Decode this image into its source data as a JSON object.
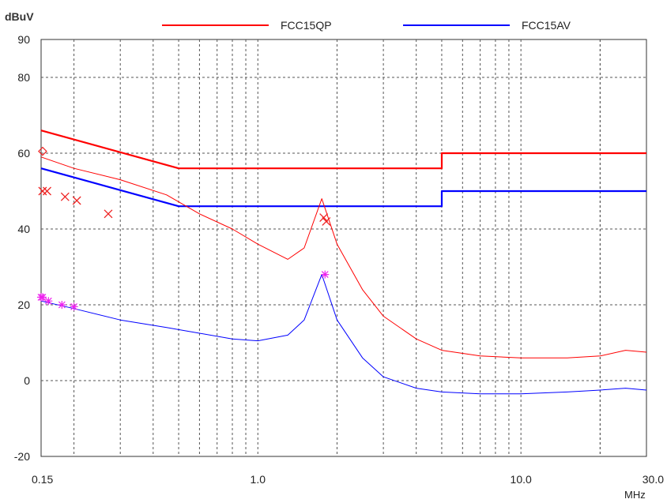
{
  "chart_data": {
    "type": "line",
    "ylabel": "dBuV",
    "xunit": "MHz",
    "x_scale": "log",
    "xlim": [
      0.15,
      30.0
    ],
    "ylim": [
      -20,
      90
    ],
    "grid": true,
    "legend_position": "top",
    "x_tick_labels": [
      {
        "value": 0.15,
        "label": "0.15"
      },
      {
        "value": 1.0,
        "label": "1.0"
      },
      {
        "value": 10.0,
        "label": "10.0"
      },
      {
        "value": 30.0,
        "label": "30.0"
      }
    ],
    "y_ticks": [
      -20,
      0,
      20,
      40,
      60,
      80,
      90
    ],
    "legend": [
      {
        "name": "FCC15QP",
        "color": "#ff0000"
      },
      {
        "name": "FCC15AV",
        "color": "#0000ff"
      }
    ],
    "series": [
      {
        "name": "FCC15QP",
        "color": "#ff0000",
        "x": [
          0.15,
          0.5,
          0.5,
          5.0,
          5.0,
          30.0
        ],
        "y": [
          66,
          56,
          56,
          56,
          60,
          60
        ]
      },
      {
        "name": "FCC15AV",
        "color": "#0000ff",
        "x": [
          0.15,
          0.5,
          0.5,
          5.0,
          5.0,
          30.0
        ],
        "y": [
          56,
          46,
          46,
          46,
          50,
          50
        ]
      },
      {
        "color": "#ff0000",
        "x": [
          0.15,
          0.2,
          0.3,
          0.45,
          0.6,
          0.8,
          1.0,
          1.3,
          1.5,
          1.75,
          2.0,
          2.5,
          3.0,
          4.0,
          5.0,
          7.0,
          10.0,
          15.0,
          20.0,
          25.0,
          30.0
        ],
        "y": [
          59,
          56,
          53,
          49,
          44,
          40,
          36,
          32,
          35,
          48,
          36,
          24,
          17,
          11,
          8,
          6.5,
          6,
          6,
          6.5,
          8,
          7.5
        ]
      },
      {
        "color": "#0000ff",
        "x": [
          0.15,
          0.2,
          0.3,
          0.45,
          0.6,
          0.8,
          1.0,
          1.3,
          1.5,
          1.75,
          2.0,
          2.5,
          3.0,
          4.0,
          5.0,
          7.0,
          10.0,
          15.0,
          20.0,
          25.0,
          30.0
        ],
        "y": [
          21,
          19,
          16,
          14,
          12.5,
          11,
          10.5,
          12,
          16,
          28,
          16,
          6,
          1,
          -2,
          -3,
          -3.5,
          -3.5,
          -3,
          -2.5,
          -2,
          -2.5
        ]
      }
    ],
    "markers": [
      {
        "type": "x",
        "color": "#ee2222",
        "x": [
          0.152,
          0.158,
          0.185,
          0.205,
          0.27,
          1.78,
          1.82
        ],
        "y": [
          50,
          50,
          48.5,
          47.5,
          44,
          43,
          42
        ]
      },
      {
        "type": "diamond",
        "color": "#ee2222",
        "x": [
          0.152
        ],
        "y": [
          60.5
        ]
      },
      {
        "type": "asterisk",
        "color": "#ee22ee",
        "x": [
          0.15,
          0.152,
          0.16,
          0.18,
          0.2,
          1.8
        ],
        "y": [
          22,
          22,
          21,
          20,
          19.5,
          28
        ]
      }
    ]
  }
}
